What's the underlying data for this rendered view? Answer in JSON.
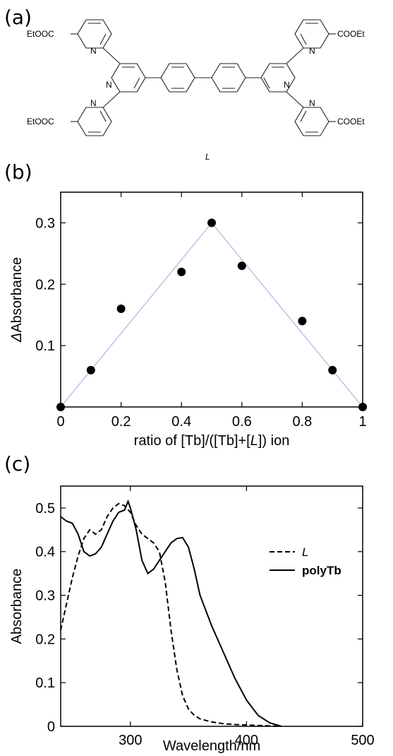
{
  "panels": {
    "a": "(a)",
    "b": "(b)",
    "c": "(c)"
  },
  "structure": {
    "groups": [
      "EtOOC",
      "EtOOC",
      "COOEt",
      "COOEt"
    ],
    "n_labels": [
      "N",
      "N",
      "N",
      "N",
      "N",
      "N"
    ],
    "ligand_label": "L"
  },
  "chart_data": [
    {
      "type": "scatter",
      "xlabel": "ratio of [Tb]/([Tb]+[L]) ion",
      "xlabel_parts": {
        "pre": "ratio of [Tb]/([Tb]+[",
        "italic": "L",
        "post": "]) ion"
      },
      "ylabel": "ΔAbsorbance",
      "ylabel_parts": {
        "italic": "Δ",
        "rest": "Absorbance"
      },
      "xlim": [
        0,
        1
      ],
      "ylim": [
        0,
        0.35
      ],
      "xticks": [
        0,
        0.2,
        0.4,
        0.6,
        0.8,
        1
      ],
      "xtick_labels": [
        "0",
        "0.2",
        "0.4",
        "0.6",
        "0.8",
        "1"
      ],
      "yticks": [
        0.1,
        0.2,
        0.3
      ],
      "ytick_labels": [
        "0.1",
        "0.2",
        "0.3"
      ],
      "points": [
        {
          "x": 0,
          "y": 0
        },
        {
          "x": 0.1,
          "y": 0.06
        },
        {
          "x": 0.2,
          "y": 0.16
        },
        {
          "x": 0.4,
          "y": 0.22
        },
        {
          "x": 0.5,
          "y": 0.3
        },
        {
          "x": 0.6,
          "y": 0.23
        },
        {
          "x": 0.8,
          "y": 0.14
        },
        {
          "x": 0.9,
          "y": 0.06
        },
        {
          "x": 1,
          "y": 0
        }
      ],
      "fit_line": [
        [
          0,
          0
        ],
        [
          0.5,
          0.3
        ],
        [
          1,
          0
        ]
      ],
      "fit_color": "#a9b7d9",
      "grid": false
    },
    {
      "type": "line",
      "xlabel": "Wavelength/nm",
      "ylabel": "Absorbance",
      "xlim": [
        240,
        500
      ],
      "ylim": [
        0,
        0.55
      ],
      "xticks": [
        300,
        400,
        500
      ],
      "xtick_labels": [
        "300",
        "400",
        "500"
      ],
      "yticks": [
        0,
        0.1,
        0.2,
        0.3,
        0.4,
        0.5
      ],
      "ytick_labels": [
        "0",
        "0.1",
        "0.2",
        "0.3",
        "0.4",
        "0.5"
      ],
      "legend_position": "top-right",
      "grid": false,
      "series": [
        {
          "name": "L",
          "style": "dashed",
          "points": [
            [
              240,
              0.22
            ],
            [
              245,
              0.28
            ],
            [
              250,
              0.34
            ],
            [
              255,
              0.39
            ],
            [
              260,
              0.43
            ],
            [
              265,
              0.45
            ],
            [
              270,
              0.44
            ],
            [
              275,
              0.45
            ],
            [
              280,
              0.48
            ],
            [
              285,
              0.5
            ],
            [
              290,
              0.51
            ],
            [
              295,
              0.505
            ],
            [
              300,
              0.49
            ],
            [
              305,
              0.46
            ],
            [
              310,
              0.44
            ],
            [
              315,
              0.43
            ],
            [
              320,
              0.42
            ],
            [
              325,
              0.4
            ],
            [
              330,
              0.33
            ],
            [
              335,
              0.22
            ],
            [
              340,
              0.13
            ],
            [
              345,
              0.07
            ],
            [
              350,
              0.04
            ],
            [
              355,
              0.025
            ],
            [
              360,
              0.017
            ],
            [
              370,
              0.01
            ],
            [
              380,
              0.006
            ],
            [
              390,
              0.004
            ],
            [
              400,
              0.003
            ],
            [
              410,
              0.002
            ],
            [
              420,
              0.001
            ],
            [
              430,
              0.0
            ]
          ]
        },
        {
          "name": "polyTb",
          "style": "solid",
          "points": [
            [
              240,
              0.48
            ],
            [
              245,
              0.47
            ],
            [
              250,
              0.465
            ],
            [
              255,
              0.44
            ],
            [
              260,
              0.4
            ],
            [
              265,
              0.39
            ],
            [
              270,
              0.395
            ],
            [
              275,
              0.41
            ],
            [
              280,
              0.44
            ],
            [
              285,
              0.47
            ],
            [
              290,
              0.49
            ],
            [
              295,
              0.495
            ],
            [
              298,
              0.515
            ],
            [
              300,
              0.5
            ],
            [
              305,
              0.45
            ],
            [
              310,
              0.38
            ],
            [
              315,
              0.35
            ],
            [
              320,
              0.36
            ],
            [
              325,
              0.38
            ],
            [
              330,
              0.4
            ],
            [
              335,
              0.42
            ],
            [
              340,
              0.43
            ],
            [
              345,
              0.432
            ],
            [
              350,
              0.41
            ],
            [
              355,
              0.36
            ],
            [
              360,
              0.3
            ],
            [
              370,
              0.23
            ],
            [
              380,
              0.17
            ],
            [
              390,
              0.11
            ],
            [
              400,
              0.06
            ],
            [
              410,
              0.025
            ],
            [
              420,
              0.008
            ],
            [
              430,
              0.0
            ]
          ]
        }
      ]
    }
  ]
}
